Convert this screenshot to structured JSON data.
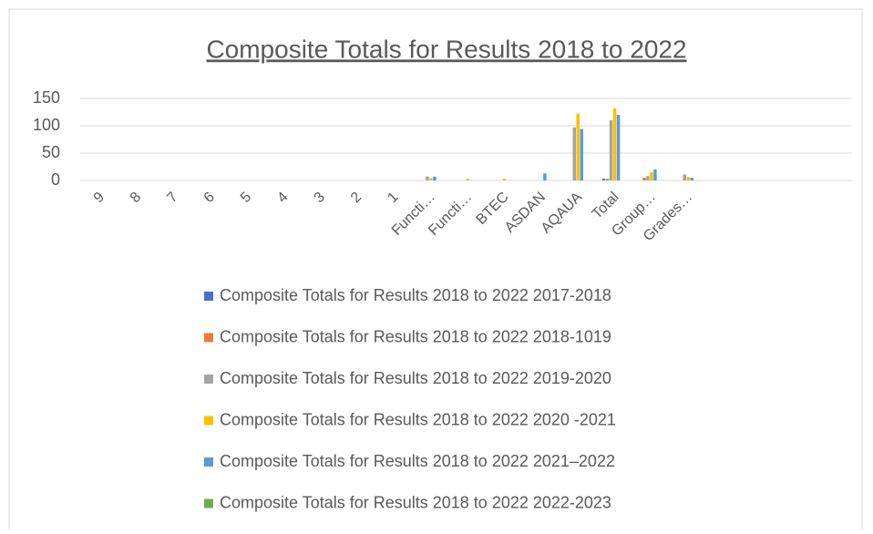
{
  "chart_data": {
    "type": "bar",
    "title": "Composite Totals for Results 2018 to 2022",
    "categories": [
      "9",
      "8",
      "7",
      "6",
      "5",
      "4",
      "3",
      "2",
      "1",
      "Functi…",
      "Functi…",
      "BTEC",
      "ASDAN",
      "AQAUA",
      "Total",
      "Group…",
      "Grades…",
      null,
      null,
      null,
      null
    ],
    "series": [
      {
        "name": "Composite Totals for Results 2018 to 2022 2017-2018",
        "color": "#4472c4",
        "values": [
          null,
          null,
          null,
          null,
          null,
          null,
          null,
          null,
          null,
          null,
          null,
          null,
          null,
          null,
          3,
          null,
          null,
          null,
          null,
          null,
          null
        ]
      },
      {
        "name": "Composite Totals for Results 2018 to 2022 2018-1019",
        "color": "#ed7d31",
        "values": [
          null,
          null,
          null,
          null,
          null,
          null,
          null,
          null,
          null,
          null,
          null,
          null,
          null,
          null,
          3,
          5,
          null,
          null,
          null,
          null,
          null
        ]
      },
      {
        "name": "Composite Totals for Results 2018 to 2022 2019-2020",
        "color": "#a5a5a5",
        "values": [
          null,
          null,
          null,
          null,
          null,
          null,
          null,
          null,
          null,
          7,
          null,
          null,
          null,
          97,
          110,
          8,
          11,
          null,
          null,
          null,
          null
        ]
      },
      {
        "name": "Composite Totals for Results 2018 to 2022 2020 -2021",
        "color": "#ffc000",
        "values": [
          null,
          null,
          null,
          null,
          null,
          null,
          null,
          null,
          null,
          4,
          3,
          3,
          null,
          122,
          132,
          15,
          6,
          null,
          null,
          null,
          null
        ]
      },
      {
        "name": "Composite Totals for Results 2018 to 2022 2021–2022",
        "color": "#5b9bd5",
        "values": [
          null,
          null,
          null,
          null,
          null,
          null,
          null,
          null,
          null,
          7,
          null,
          null,
          13,
          94,
          120,
          20,
          5,
          null,
          null,
          null,
          null
        ]
      },
      {
        "name": "Composite Totals for Results 2018 to 2022 2022-2023",
        "color": "#70ad47",
        "values": [
          null,
          null,
          null,
          null,
          null,
          null,
          null,
          null,
          null,
          null,
          null,
          null,
          null,
          null,
          null,
          null,
          null,
          null,
          null,
          null,
          null
        ]
      }
    ],
    "ylim": [
      0,
      150
    ],
    "yticks": [
      0,
      50,
      100,
      150
    ],
    "grid": true,
    "legend": "bottom"
  }
}
